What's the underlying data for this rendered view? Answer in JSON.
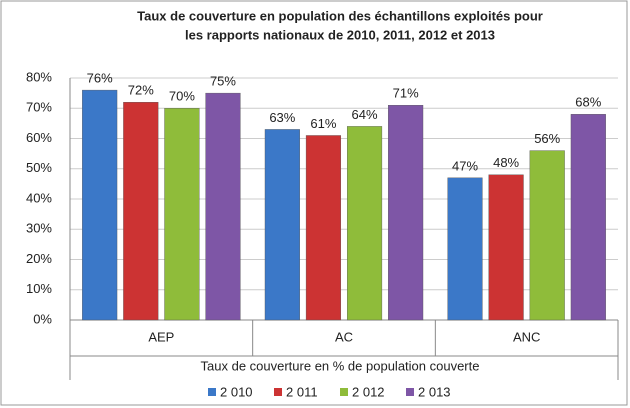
{
  "chart_data": {
    "type": "bar",
    "title": [
      "Taux de couverture en population des échantillons exploités pour",
      "les rapports nationaux de 2010, 2011, 2012 et 2013"
    ],
    "x_label": "Taux de couverture en % de population couverte",
    "categories": [
      "AEP",
      "AC",
      "ANC"
    ],
    "series": [
      {
        "name": "2 010",
        "color": "#3b78c8",
        "values": [
          76,
          63,
          47
        ],
        "value_labels": [
          "76%",
          "63%",
          "47%"
        ]
      },
      {
        "name": "2 011",
        "color": "#cc3333",
        "values": [
          72,
          61,
          48
        ],
        "value_labels": [
          "72%",
          "61%",
          "48%"
        ]
      },
      {
        "name": "2 012",
        "color": "#8fbc3a",
        "values": [
          70,
          64,
          56
        ],
        "value_labels": [
          "70%",
          "64%",
          "56%"
        ]
      },
      {
        "name": "2 013",
        "color": "#7e56a6",
        "values": [
          75,
          71,
          68
        ],
        "value_labels": [
          "75%",
          "71%",
          "68%"
        ]
      }
    ],
    "ylim": [
      0,
      80
    ],
    "yticks": [
      {
        "value": 0,
        "label": "0%"
      },
      {
        "value": 10,
        "label": "10%"
      },
      {
        "value": 20,
        "label": "20%"
      },
      {
        "value": 30,
        "label": "30%"
      },
      {
        "value": 40,
        "label": "40%"
      },
      {
        "value": 50,
        "label": "50%"
      },
      {
        "value": 60,
        "label": "60%"
      },
      {
        "value": 70,
        "label": "70%"
      },
      {
        "value": 80,
        "label": "80%"
      }
    ],
    "grid": true,
    "legend": "bottom"
  }
}
